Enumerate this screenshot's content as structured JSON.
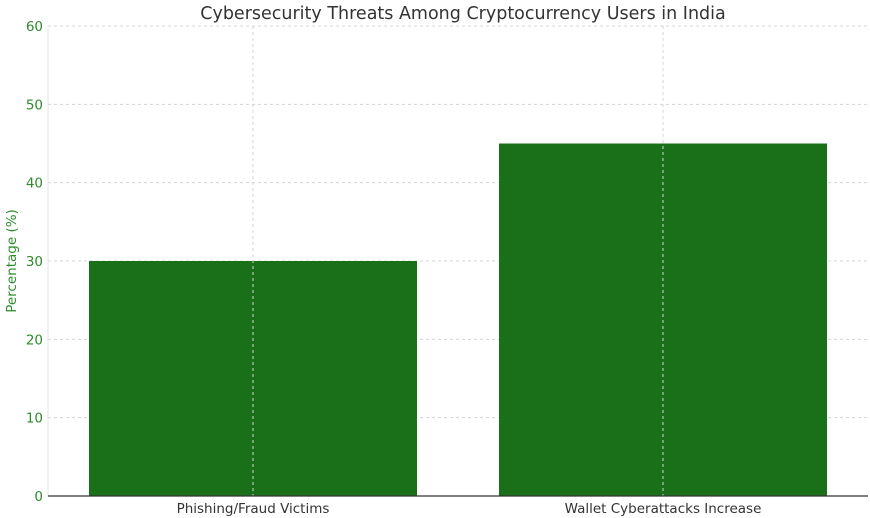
{
  "chart_data": {
    "type": "bar",
    "title": "Cybersecurity Threats Among Cryptocurrency Users in India",
    "xlabel": "",
    "ylabel": "Percentage (%)",
    "categories": [
      "Phishing/Fraud Victims",
      "Wallet Cyberattacks Increase"
    ],
    "values": [
      30,
      45
    ],
    "ylim": [
      0,
      60
    ],
    "yticks": [
      "0",
      "10",
      "20",
      "30",
      "40",
      "50",
      "60"
    ],
    "grid": true,
    "bar_color": "#1a7018",
    "ylabel_color": "#2e8b2e"
  }
}
